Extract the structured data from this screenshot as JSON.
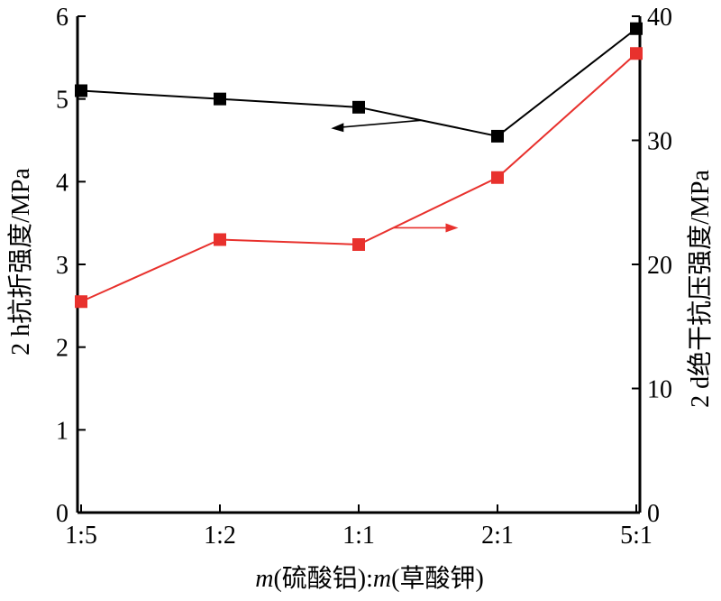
{
  "chart_data": {
    "type": "line",
    "categories": [
      "1:5",
      "1:2",
      "1:1",
      "2:1",
      "5:1"
    ],
    "xlabel": {
      "m1": "m",
      "a": "(硫酸铝)",
      "colon": ":",
      "m2": "m",
      "b": "(草酸钾)"
    },
    "ylabel_left": "2 h抗折强度/MPa",
    "ylabel_right": "2 d绝干抗压强度/MPa",
    "ylim_left": [
      0,
      6
    ],
    "yticks_left": [
      "0",
      "1",
      "2",
      "3",
      "4",
      "5",
      "6"
    ],
    "ylim_right": [
      0,
      40
    ],
    "yticks_right": [
      "0",
      "10",
      "20",
      "30",
      "40"
    ],
    "grid": false,
    "series": [
      {
        "axis": "left",
        "color": "#000000",
        "values": [
          5.1,
          5.0,
          4.9,
          4.55,
          5.85
        ]
      },
      {
        "axis": "right",
        "color": "#e8312d",
        "values": [
          17.0,
          22.0,
          21.6,
          27.0,
          37.0
        ]
      }
    ],
    "annotations": [
      {
        "type": "arrow",
        "series": 0,
        "direction": "left",
        "color": "#000000"
      },
      {
        "type": "arrow",
        "series": 1,
        "direction": "right",
        "color": "#e8312d"
      }
    ]
  }
}
